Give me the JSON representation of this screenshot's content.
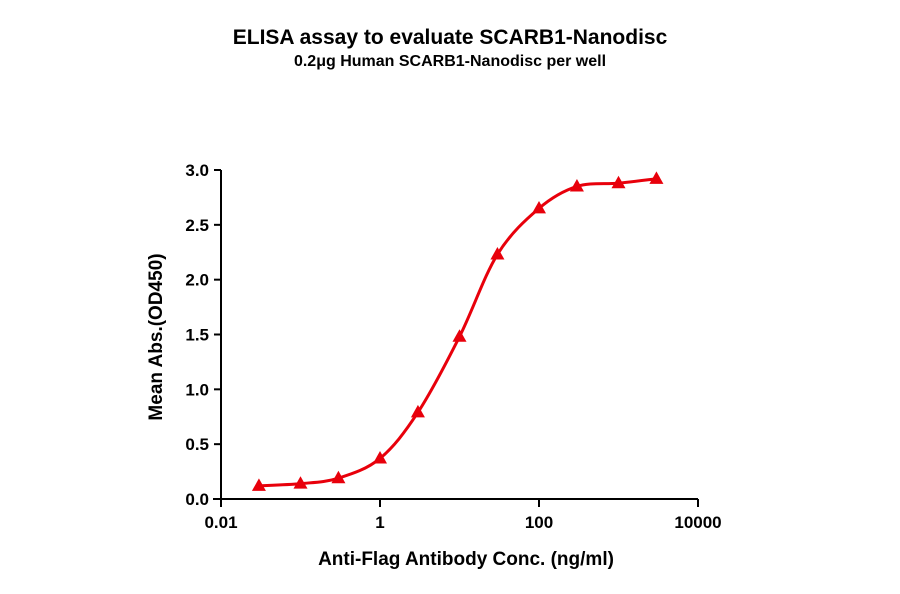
{
  "chart_data": {
    "type": "line",
    "title": "ELISA assay to evaluate SCARB1-Nanodisc",
    "subtitle": "0.2μg Human SCARB1-Nanodisc per well",
    "xlabel": "Anti-Flag Antibody Conc. (ng/ml)",
    "ylabel": "Mean Abs.(OD450)",
    "x_scale": "log",
    "xlim": [
      0.01,
      10000
    ],
    "ylim": [
      0,
      3.0
    ],
    "x_ticks": [
      "0.01",
      "1",
      "100",
      "10000"
    ],
    "y_ticks": [
      "0.0",
      "0.5",
      "1.0",
      "1.5",
      "2.0",
      "2.5",
      "3.0"
    ],
    "grid": false,
    "legend": null,
    "series": [
      {
        "name": "SCARB1-Nanodisc",
        "color": "#e8000b",
        "marker": "triangle",
        "fit": "sigmoidal 4PL curve",
        "x": [
          0.03,
          0.1,
          0.3,
          1,
          3,
          10,
          30,
          100,
          300,
          1000,
          3000
        ],
        "values": [
          0.12,
          0.14,
          0.19,
          0.37,
          0.79,
          1.48,
          2.23,
          2.65,
          2.85,
          2.88,
          2.92
        ]
      }
    ]
  }
}
